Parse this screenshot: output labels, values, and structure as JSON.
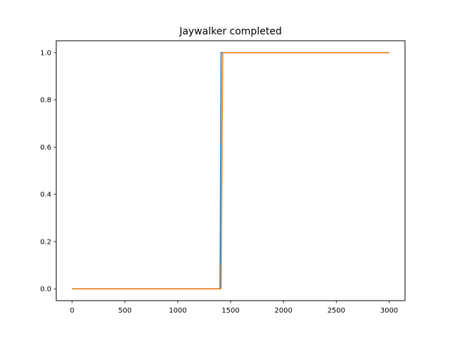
{
  "chart_data": {
    "type": "line",
    "title": "Jaywalker completed",
    "xlabel": "",
    "ylabel": "",
    "xlim": [
      -150,
      3150
    ],
    "ylim": [
      -0.05,
      1.05
    ],
    "x_ticks": [
      0,
      500,
      1000,
      1500,
      2000,
      2500,
      3000
    ],
    "x_tick_labels": [
      "0",
      "500",
      "1000",
      "1500",
      "2000",
      "2500",
      "3000"
    ],
    "y_ticks": [
      0.0,
      0.2,
      0.4,
      0.6,
      0.8,
      1.0
    ],
    "y_tick_labels": [
      "0.0",
      "0.2",
      "0.4",
      "0.6",
      "0.8",
      "1.0"
    ],
    "grid": false,
    "legend": "none",
    "series": [
      {
        "color": "#1f77b4",
        "points": [
          [
            0,
            0
          ],
          [
            1400,
            0
          ],
          [
            1410,
            1
          ],
          [
            3000,
            1
          ]
        ]
      },
      {
        "color": "#ff7f0e",
        "points": [
          [
            0,
            0
          ],
          [
            1410,
            0
          ],
          [
            1425,
            1
          ],
          [
            3000,
            1
          ]
        ]
      }
    ]
  }
}
